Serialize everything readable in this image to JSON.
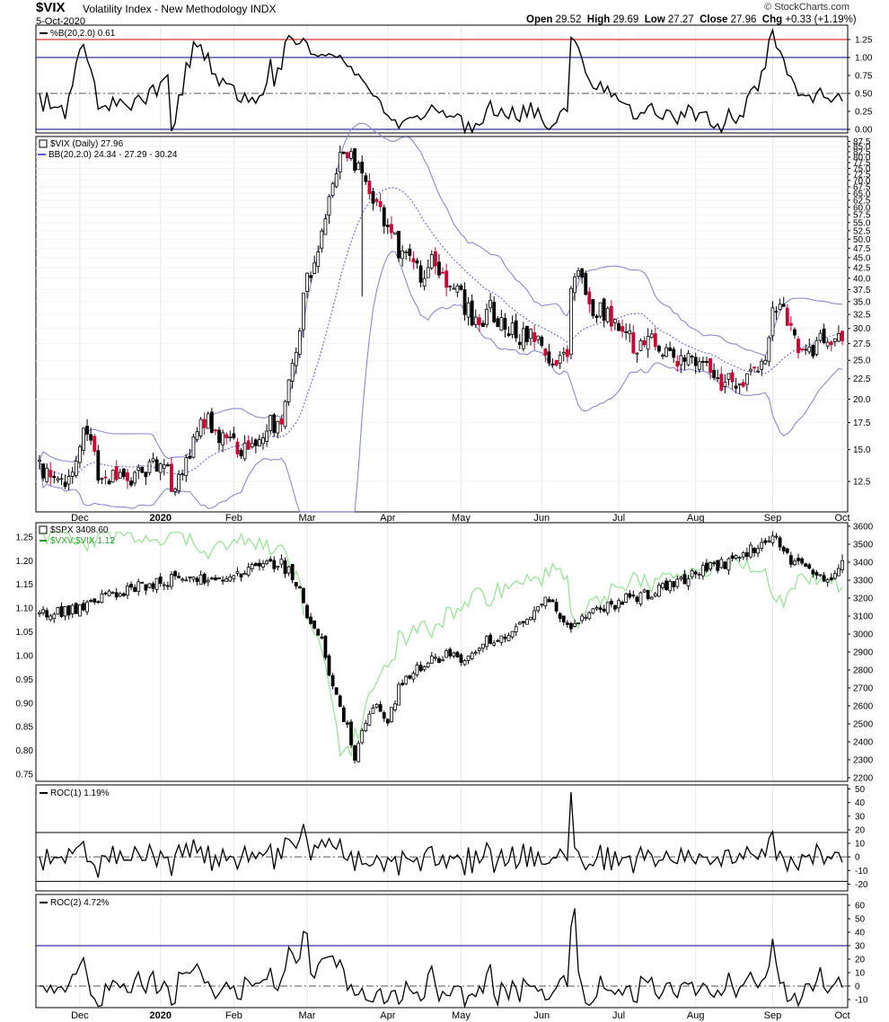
{
  "header": {
    "symbol": "$VIX",
    "name": "Volatility Index - New Methodology",
    "exchange": "INDX",
    "date": "5-Oct-2020",
    "open_label": "Open",
    "open": "29.52",
    "high_label": "High",
    "high": "29.69",
    "low_label": "Low",
    "low": "27.27",
    "close_label": "Close",
    "close": "27.96",
    "chg_label": "Chg",
    "chg": "+0.33 (+1.19%)",
    "brand": "© StockCharts.com"
  },
  "x_axis": {
    "labels": [
      "Dec",
      "2020",
      "Feb",
      "Mar",
      "Apr",
      "May",
      "Jun",
      "Jul",
      "Aug",
      "Sep",
      "Oct"
    ],
    "bold": [
      "2020"
    ]
  },
  "colors": {
    "up_candle": "#ffffff",
    "down_candle": "#000000",
    "red_candle": "#cc0033",
    "band": "#8a8acc",
    "band_mid": "#5a5acc",
    "ratio": "#9be39b",
    "ref_red": "#cc0000",
    "ref_blue": "#000080"
  },
  "chart_data": [
    {
      "id": "pctb",
      "type": "line",
      "legend": "%B(20,2.0) 0.61",
      "yticks": [
        1.25,
        1.0,
        0.75,
        0.5,
        0.25,
        0.0
      ],
      "ytick_labels": [
        "1.25",
        "1.00",
        "0.75",
        "0.50",
        "0.25",
        "0.00"
      ],
      "ylim": [
        -0.05,
        1.45
      ],
      "ref_lines": [
        {
          "y": 1.25,
          "color": "red"
        },
        {
          "y": 1.0,
          "color": "blue"
        },
        {
          "y": 0.5,
          "color": "dashdot"
        },
        {
          "y": 0.0,
          "color": "blue"
        }
      ],
      "last": 0.61
    },
    {
      "id": "vix",
      "type": "candlestick",
      "legend": "$VIX (Daily) 27.96",
      "legend2": "BB(20,2.0) 24.34 - 27.29 - 30.24",
      "scale": "log",
      "yticks": [
        87.5,
        85.0,
        82.5,
        80.0,
        77.5,
        75.0,
        72.5,
        70.0,
        67.5,
        65.0,
        62.5,
        60.0,
        57.5,
        55.0,
        52.5,
        50.0,
        47.5,
        45.0,
        42.5,
        40.0,
        37.5,
        35.0,
        32.5,
        30.0,
        27.5,
        25.0,
        22.5,
        20.0,
        17.5,
        15.0,
        12.5
      ],
      "ytick_labels": [
        "87.5",
        "85.0",
        "82.5",
        "80.0",
        "77.5",
        "75.0",
        "72.5",
        "70.0",
        "67.5",
        "65.0",
        "62.5",
        "60.0",
        "57.5",
        "55.0",
        "52.5",
        "50.0",
        "47.5",
        "45.0",
        "42.5",
        "40.0",
        "37.5",
        "35.0",
        "32.5",
        "30.0",
        "27.5",
        "25.0",
        "22.5",
        "20.0",
        "17.5",
        "15.0",
        "12.5"
      ],
      "ylim": [
        10.5,
        90
      ],
      "last": {
        "open": 29.52,
        "high": 29.69,
        "low": 27.27,
        "close": 27.96
      }
    },
    {
      "id": "spx",
      "type": "candlestick",
      "legend": "$SPX 3408.60",
      "legend2": "$VXV:$VIX 1.12",
      "yticks_right": [
        3600,
        3500,
        3400,
        3300,
        3200,
        3100,
        3000,
        2900,
        2800,
        2700,
        2600,
        2500,
        2400,
        2300,
        2200
      ],
      "ytick_labels_right": [
        "3600",
        "3500",
        "3400",
        "3300",
        "3200",
        "3100",
        "3000",
        "2900",
        "2800",
        "2700",
        "2600",
        "2500",
        "2400",
        "2300",
        "2200"
      ],
      "ylim_right": [
        2180,
        3620
      ],
      "yticks_left": [
        1.25,
        1.2,
        1.15,
        1.1,
        1.05,
        1.0,
        0.95,
        0.9,
        0.85,
        0.8,
        0.75
      ],
      "ytick_labels_left": [
        "1.25",
        "1.20",
        "1.15",
        "1.10",
        "1.05",
        "1.00",
        "0.95",
        "0.90",
        "0.85",
        "0.80",
        "0.75"
      ],
      "ylim_left": [
        0.735,
        1.28
      ]
    },
    {
      "id": "roc1",
      "type": "line",
      "legend": "ROC(1) 1.19%",
      "yticks": [
        50,
        40,
        30,
        20,
        10,
        0,
        -10,
        -20
      ],
      "ytick_labels": [
        "50",
        "40",
        "30",
        "20",
        "10",
        "0",
        "-10",
        "-20"
      ],
      "ylim": [
        -25,
        53
      ],
      "ref_lines": [
        {
          "y": 18,
          "color": "black"
        },
        {
          "y": 0,
          "color": "dashdot"
        },
        {
          "y": -18,
          "color": "black"
        }
      ],
      "last": 1.19
    },
    {
      "id": "roc2",
      "type": "line",
      "legend": "ROC(2) 4.72%",
      "yticks": [
        60,
        50,
        40,
        30,
        20,
        10,
        0,
        -10
      ],
      "ytick_labels": [
        "60",
        "50",
        "40",
        "30",
        "20",
        "10",
        "0",
        "-10"
      ],
      "ylim": [
        -16,
        68
      ],
      "ref_lines": [
        {
          "y": 30,
          "color": "blue"
        },
        {
          "y": 0,
          "color": "dashdot"
        }
      ],
      "last": 4.72
    }
  ]
}
